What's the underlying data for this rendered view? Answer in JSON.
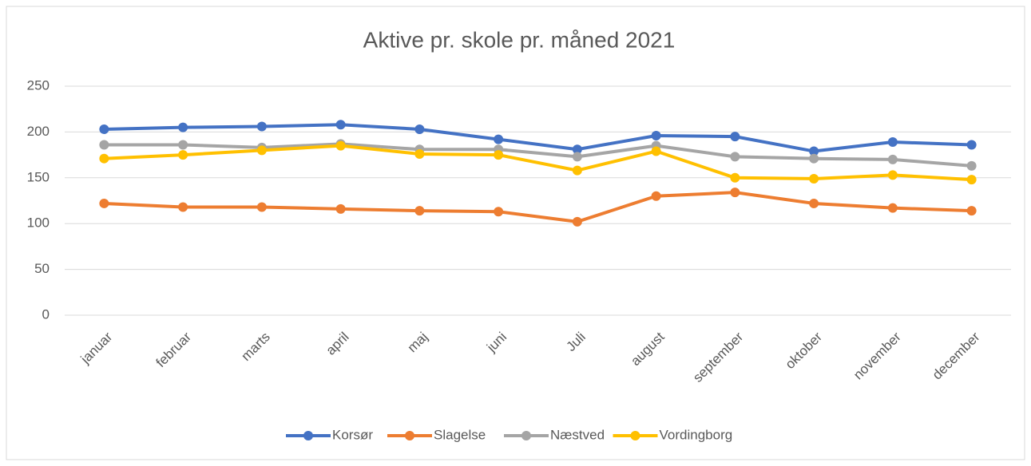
{
  "chart_data": {
    "type": "line",
    "title": "Aktive pr. skole pr. måned 2021",
    "categories": [
      "januar",
      "februar",
      "marts",
      "april",
      "maj",
      "juni",
      "Juli",
      "august",
      "september",
      "oktober",
      "november",
      "december"
    ],
    "series": [
      {
        "name": "Korsør",
        "color": "#4472c4",
        "values": [
          203,
          205,
          206,
          208,
          203,
          192,
          181,
          196,
          195,
          179,
          189,
          186
        ]
      },
      {
        "name": "Slagelse",
        "color": "#ed7d31",
        "values": [
          122,
          118,
          118,
          116,
          114,
          113,
          102,
          130,
          134,
          122,
          117,
          114
        ]
      },
      {
        "name": "Næstved",
        "color": "#a5a5a5",
        "values": [
          186,
          186,
          183,
          187,
          181,
          181,
          173,
          185,
          173,
          171,
          170,
          163
        ]
      },
      {
        "name": "Vordingborg",
        "color": "#ffc000",
        "values": [
          171,
          175,
          180,
          185,
          176,
          175,
          158,
          179,
          150,
          149,
          153,
          148
        ]
      }
    ],
    "ylim": [
      0,
      250
    ],
    "yticks": [
      0,
      50,
      100,
      150,
      200,
      250
    ],
    "grid": true,
    "legend": "bottom"
  }
}
